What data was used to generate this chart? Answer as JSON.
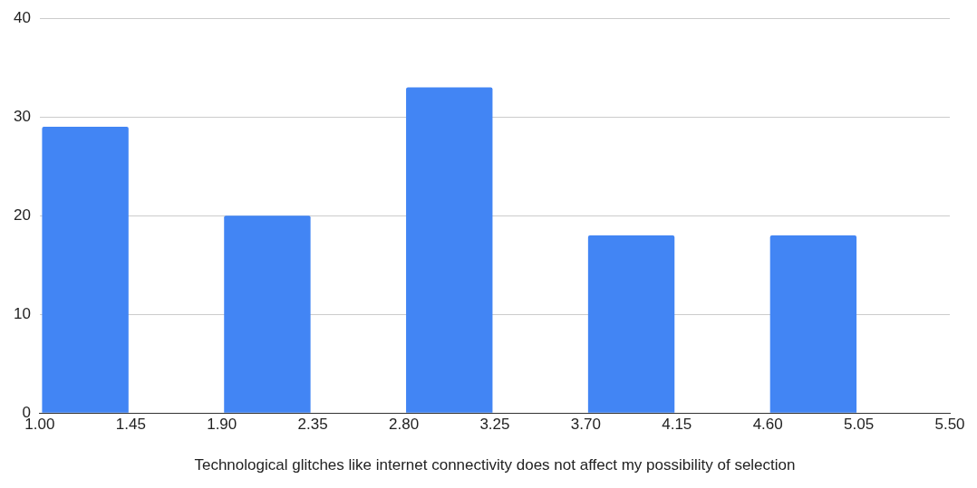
{
  "chart_data": {
    "type": "histogram",
    "xlabel": "Technological glitches like internet connectivity does not affect my possibility of selection",
    "bins": [
      1.0,
      1.45,
      1.9,
      2.35,
      2.8,
      3.25,
      3.7,
      4.15,
      4.6,
      5.05,
      5.5
    ],
    "values": [
      29,
      0,
      20,
      0,
      33,
      0,
      18,
      0,
      18,
      0
    ],
    "color": "#4285f4",
    "xlim": [
      1.0,
      5.5
    ],
    "xticks": [
      {
        "value": 1.0,
        "label": "1.00"
      },
      {
        "value": 1.45,
        "label": "1.45"
      },
      {
        "value": 1.9,
        "label": "1.90"
      },
      {
        "value": 2.35,
        "label": "2.35"
      },
      {
        "value": 2.8,
        "label": "2.80"
      },
      {
        "value": 3.25,
        "label": "3.25"
      },
      {
        "value": 3.7,
        "label": "3.70"
      },
      {
        "value": 4.15,
        "label": "4.15"
      },
      {
        "value": 4.6,
        "label": "4.60"
      },
      {
        "value": 5.05,
        "label": "5.05"
      },
      {
        "value": 5.5,
        "label": "5.50"
      }
    ],
    "ylim": [
      0,
      40
    ],
    "yticks": [
      0,
      10,
      20,
      30,
      40
    ],
    "grid": "y",
    "legend": false
  }
}
